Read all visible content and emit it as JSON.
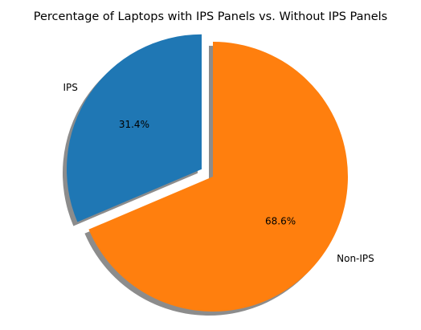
{
  "chart_data": {
    "type": "pie",
    "title": "Percentage of Laptops with IPS Panels vs. Without IPS Panels",
    "slices": [
      {
        "label": "IPS",
        "value": 31.4,
        "pct_label": "31.4%",
        "color": "#1f77b4",
        "exploded": true
      },
      {
        "label": "Non-IPS",
        "value": 68.6,
        "pct_label": "68.6%",
        "color": "#ff7f0e",
        "exploded": false
      }
    ],
    "start_angle_deg": 90,
    "direction": "counterclockwise",
    "shadow": true
  }
}
